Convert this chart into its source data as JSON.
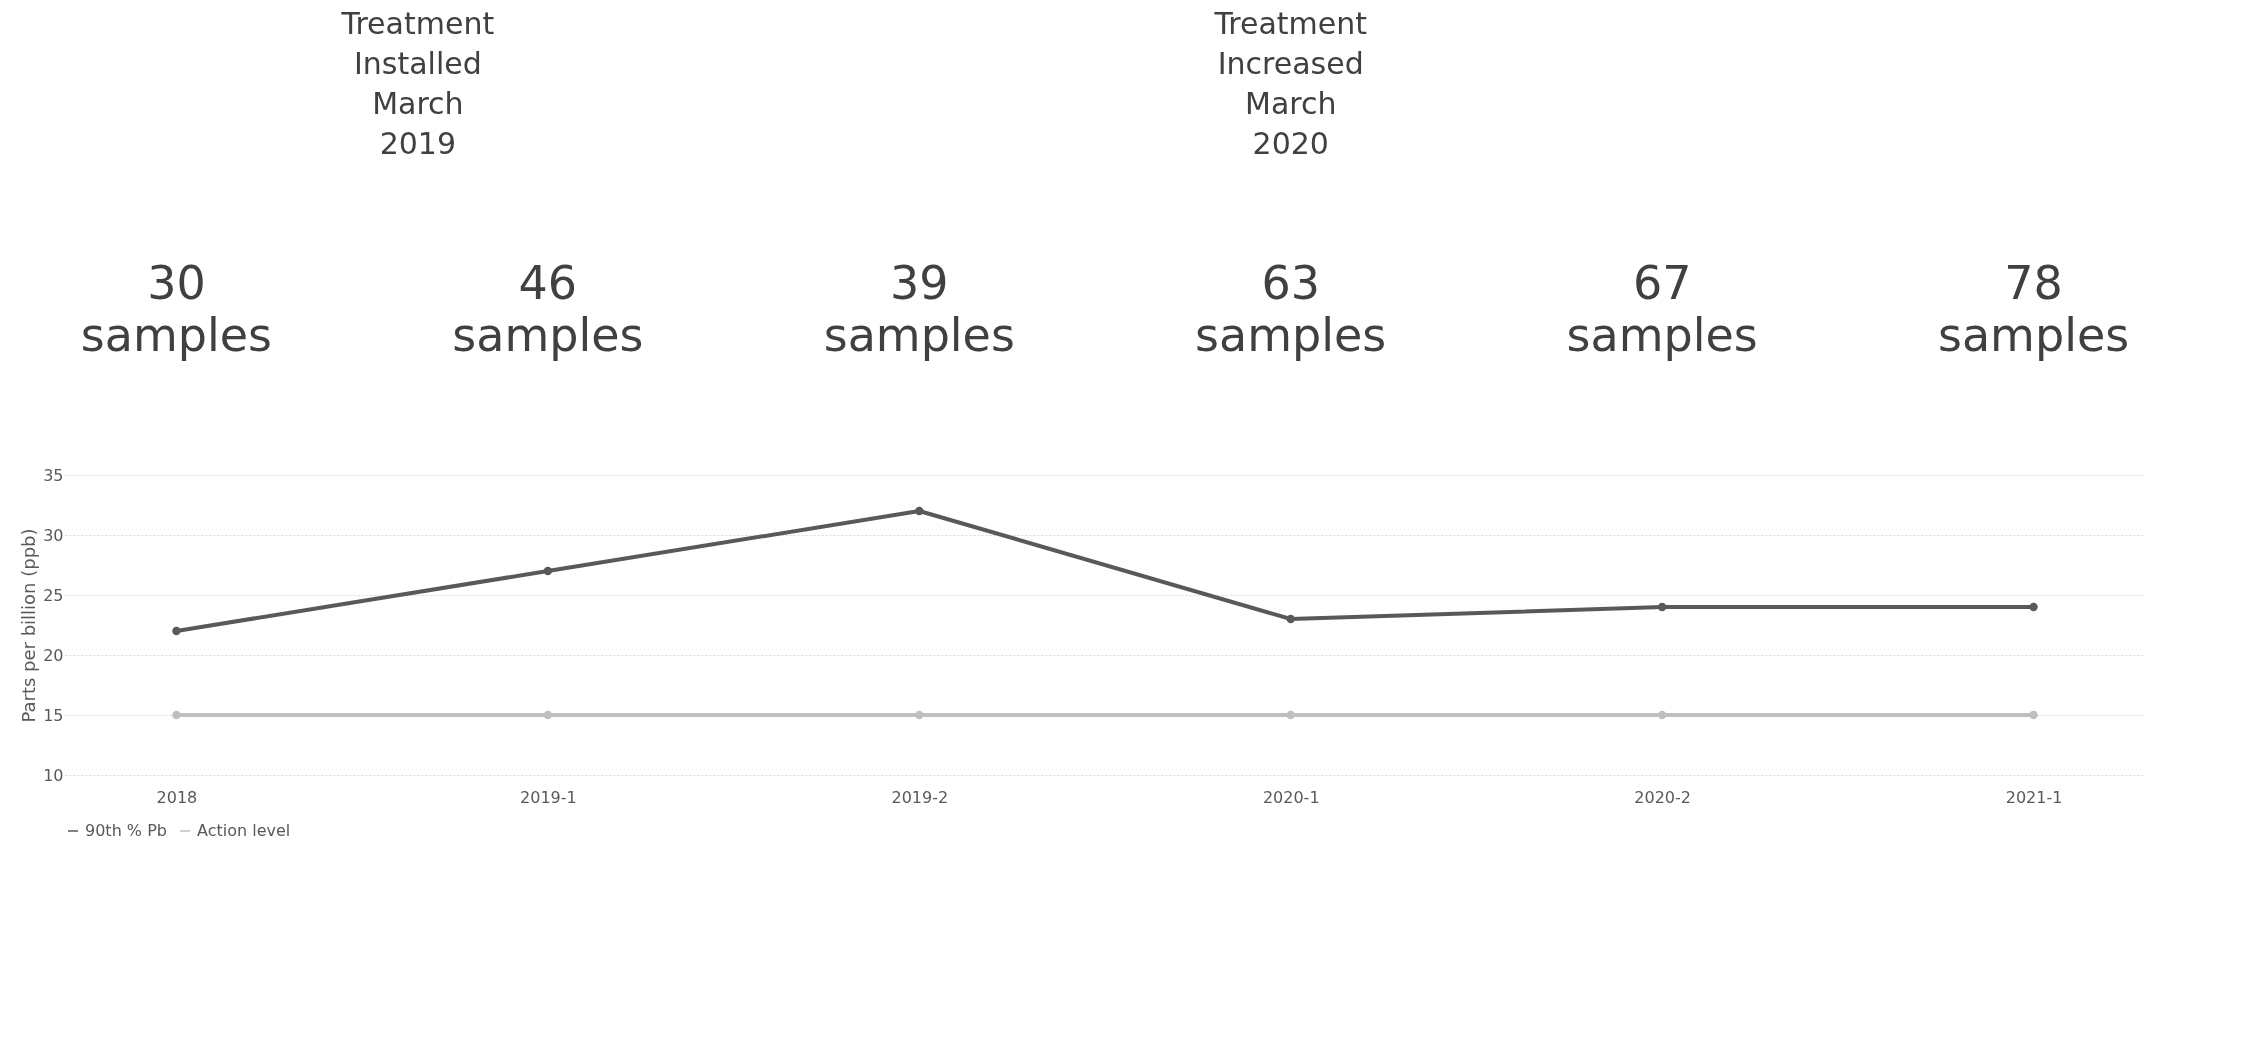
{
  "chart_data": {
    "type": "line",
    "ylabel": "Parts per billion (ppb)",
    "categories": [
      "2018",
      "2019-1",
      "2019-2",
      "2020-1",
      "2020-2",
      "2021-1"
    ],
    "series": [
      {
        "name": "90th % Pb",
        "color": "#595959",
        "values": [
          22,
          27,
          32,
          23,
          24,
          24
        ]
      },
      {
        "name": "Action level",
        "color": "#bfbfbf",
        "values": [
          15,
          15,
          15,
          15,
          15,
          15
        ]
      }
    ],
    "ylim": [
      10,
      35
    ],
    "yticks": [
      10,
      15,
      20,
      25,
      30,
      35
    ],
    "grid": "y",
    "legend": "bottom",
    "marker": "circle",
    "line_style": "solid",
    "annotations": [
      "30 samples",
      "46 samples",
      "39 samples",
      "63 samples",
      "67 samples",
      "78 samples",
      "Treatment Installed March 2019",
      "Treatment Increased March 2020"
    ]
  }
}
